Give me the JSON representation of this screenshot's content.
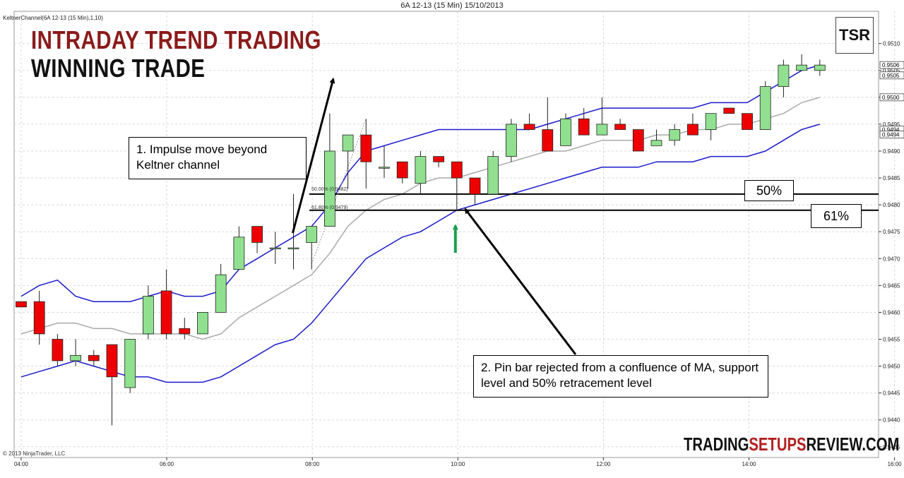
{
  "window_title": "6A 12-13 (15 Min)  15/10/2013",
  "indicator_label": "KeltnerChannel(6A 12-13 (15 Min),1,10)",
  "headline": {
    "line1": "INTRADAY TREND TRADING",
    "line2": "WINNING TRADE"
  },
  "logo_text": "TSR",
  "copyright": "© 2013 NinjaTrader, LLC",
  "brand": {
    "part1": "TRADING",
    "part2": "SETUPS",
    "part3": "REVIEW.COM"
  },
  "annotations": {
    "impulse": "1. Impulse  move beyond Keltner channel",
    "pinbar": "2. Pin bar rejected from a confluence of MA, support level and 50% retracement level"
  },
  "fib_labels": {
    "fifty": "50.00% (0.9482)",
    "sixtyone": "61.80% (0.9479)"
  },
  "level_boxes": {
    "fifty": "50%",
    "sixtyone": "61%"
  },
  "colors": {
    "bull": "#90e090",
    "bear": "#ee0000",
    "upper_band": "#1a1acc",
    "lower_band": "#1a1acc",
    "mid_line": "#aaaaaa",
    "arrow_green": "#1aa050",
    "headline_red": "#8b1a1a",
    "brand_red": "#b22020"
  },
  "chart_data": {
    "type": "candlestick",
    "title": "6A 12-13 (15 Min)  15/10/2013",
    "x_ticks": [
      "04:00",
      "06:00",
      "08:00",
      "10:00",
      "12:00",
      "14:00",
      "16:00"
    ],
    "y_ticks": [
      "0.9510",
      "0.9505",
      "0.9500",
      "0.9495",
      "0.9490",
      "0.9485",
      "0.9480",
      "0.9475",
      "0.9470",
      "0.9465",
      "0.9460",
      "0.9455",
      "0.9450",
      "0.9445",
      "0.9440",
      "0.9435"
    ],
    "ylim": [
      0.9433,
      0.9516
    ],
    "price_tags": [
      "0.9506",
      "0.9505",
      "0.9500",
      "0.9494",
      "0.9494"
    ],
    "candles": [
      {
        "o": 0.9462,
        "h": 0.9462,
        "l": 0.9461,
        "c": 0.9461
      },
      {
        "o": 0.9462,
        "h": 0.9464,
        "l": 0.9454,
        "c": 0.9456
      },
      {
        "o": 0.9455,
        "h": 0.9456,
        "l": 0.945,
        "c": 0.9451
      },
      {
        "o": 0.9451,
        "h": 0.9455,
        "l": 0.945,
        "c": 0.9452
      },
      {
        "o": 0.9452,
        "h": 0.9453,
        "l": 0.945,
        "c": 0.9451
      },
      {
        "o": 0.9454,
        "h": 0.9454,
        "l": 0.9439,
        "c": 0.9448
      },
      {
        "o": 0.9446,
        "h": 0.9455,
        "l": 0.9445,
        "c": 0.9455
      },
      {
        "o": 0.9456,
        "h": 0.9465,
        "l": 0.9455,
        "c": 0.9463
      },
      {
        "o": 0.9464,
        "h": 0.9468,
        "l": 0.9455,
        "c": 0.9456
      },
      {
        "o": 0.9457,
        "h": 0.9459,
        "l": 0.9455,
        "c": 0.9456
      },
      {
        "o": 0.9456,
        "h": 0.946,
        "l": 0.9456,
        "c": 0.946
      },
      {
        "o": 0.946,
        "h": 0.9469,
        "l": 0.946,
        "c": 0.9467
      },
      {
        "o": 0.9468,
        "h": 0.9476,
        "l": 0.9468,
        "c": 0.9474
      },
      {
        "o": 0.9476,
        "h": 0.9476,
        "l": 0.9471,
        "c": 0.9473
      },
      {
        "o": 0.9472,
        "h": 0.9475,
        "l": 0.9469,
        "c": 0.9472
      },
      {
        "o": 0.9472,
        "h": 0.9482,
        "l": 0.9468,
        "c": 0.9472
      },
      {
        "o": 0.9473,
        "h": 0.9476,
        "l": 0.9468,
        "c": 0.9476
      },
      {
        "o": 0.9476,
        "h": 0.9497,
        "l": 0.9476,
        "c": 0.949
      },
      {
        "o": 0.949,
        "h": 0.9493,
        "l": 0.9483,
        "c": 0.9493
      },
      {
        "o": 0.9493,
        "h": 0.9496,
        "l": 0.9483,
        "c": 0.9488
      },
      {
        "o": 0.9487,
        "h": 0.9491,
        "l": 0.9485,
        "c": 0.9487
      },
      {
        "o": 0.9488,
        "h": 0.9488,
        "l": 0.9484,
        "c": 0.9485
      },
      {
        "o": 0.9484,
        "h": 0.949,
        "l": 0.9482,
        "c": 0.9489
      },
      {
        "o": 0.9489,
        "h": 0.9489,
        "l": 0.9487,
        "c": 0.9488
      },
      {
        "o": 0.9488,
        "h": 0.9488,
        "l": 0.9479,
        "c": 0.9485
      },
      {
        "o": 0.9485,
        "h": 0.9485,
        "l": 0.948,
        "c": 0.9482
      },
      {
        "o": 0.9482,
        "h": 0.949,
        "l": 0.9482,
        "c": 0.9489
      },
      {
        "o": 0.9489,
        "h": 0.9496,
        "l": 0.9488,
        "c": 0.9495
      },
      {
        "o": 0.9495,
        "h": 0.9497,
        "l": 0.9494,
        "c": 0.9494
      },
      {
        "o": 0.9494,
        "h": 0.95,
        "l": 0.949,
        "c": 0.949
      },
      {
        "o": 0.9491,
        "h": 0.9497,
        "l": 0.9491,
        "c": 0.9496
      },
      {
        "o": 0.9496,
        "h": 0.9498,
        "l": 0.9493,
        "c": 0.9493
      },
      {
        "o": 0.9493,
        "h": 0.95,
        "l": 0.9493,
        "c": 0.9495
      },
      {
        "o": 0.9495,
        "h": 0.9496,
        "l": 0.9494,
        "c": 0.9494
      },
      {
        "o": 0.9494,
        "h": 0.9494,
        "l": 0.949,
        "c": 0.949
      },
      {
        "o": 0.9491,
        "h": 0.9494,
        "l": 0.9491,
        "c": 0.9492
      },
      {
        "o": 0.9492,
        "h": 0.9495,
        "l": 0.9491,
        "c": 0.9494
      },
      {
        "o": 0.9495,
        "h": 0.9497,
        "l": 0.9493,
        "c": 0.9493
      },
      {
        "o": 0.9494,
        "h": 0.9497,
        "l": 0.9492,
        "c": 0.9497
      },
      {
        "o": 0.9498,
        "h": 0.9498,
        "l": 0.9497,
        "c": 0.9497
      },
      {
        "o": 0.9497,
        "h": 0.9497,
        "l": 0.9494,
        "c": 0.9494
      },
      {
        "o": 0.9494,
        "h": 0.9503,
        "l": 0.9494,
        "c": 0.9502
      },
      {
        "o": 0.9502,
        "h": 0.9507,
        "l": 0.95,
        "c": 0.9506
      },
      {
        "o": 0.9505,
        "h": 0.9508,
        "l": 0.9505,
        "c": 0.9506
      },
      {
        "o": 0.9505,
        "h": 0.9507,
        "l": 0.9504,
        "c": 0.9506
      }
    ],
    "upper_band": [
      0.9463,
      0.9465,
      0.9466,
      0.9463,
      0.9462,
      0.9462,
      0.9462,
      0.9463,
      0.9464,
      0.9463,
      0.9463,
      0.9464,
      0.9468,
      0.947,
      0.9472,
      0.9474,
      0.9476,
      0.948,
      0.9486,
      0.949,
      0.9491,
      0.9492,
      0.9493,
      0.9494,
      0.9494,
      0.9494,
      0.9494,
      0.9494,
      0.9494,
      0.9495,
      0.9496,
      0.9497,
      0.9498,
      0.9498,
      0.9498,
      0.9498,
      0.9498,
      0.9498,
      0.9499,
      0.9499,
      0.9499,
      0.9501,
      0.9503,
      0.9505,
      0.9506
    ],
    "mid_line": [
      0.9456,
      0.9457,
      0.9458,
      0.9458,
      0.9457,
      0.9457,
      0.9456,
      0.9456,
      0.9456,
      0.9456,
      0.9455,
      0.9456,
      0.9459,
      0.9461,
      0.9463,
      0.9465,
      0.9467,
      0.9471,
      0.9476,
      0.9479,
      0.9481,
      0.9482,
      0.9484,
      0.9485,
      0.9485,
      0.9486,
      0.9487,
      0.9488,
      0.9489,
      0.949,
      0.949,
      0.9491,
      0.9492,
      0.9492,
      0.9492,
      0.9493,
      0.9493,
      0.9494,
      0.9494,
      0.9495,
      0.9495,
      0.9496,
      0.9497,
      0.9499,
      0.95
    ],
    "lower_band": [
      0.9448,
      0.9449,
      0.945,
      0.9451,
      0.945,
      0.9449,
      0.9448,
      0.9448,
      0.9447,
      0.9447,
      0.9447,
      0.9448,
      0.945,
      0.9452,
      0.9454,
      0.9455,
      0.9458,
      0.9462,
      0.9466,
      0.947,
      0.9472,
      0.9474,
      0.9475,
      0.9477,
      0.9479,
      0.948,
      0.9481,
      0.9482,
      0.9483,
      0.9484,
      0.9485,
      0.9486,
      0.9487,
      0.9487,
      0.9487,
      0.9488,
      0.9488,
      0.9488,
      0.9489,
      0.9489,
      0.9489,
      0.949,
      0.9492,
      0.9494,
      0.9495
    ],
    "fib_levels": [
      0.9482,
      0.9479
    ]
  }
}
